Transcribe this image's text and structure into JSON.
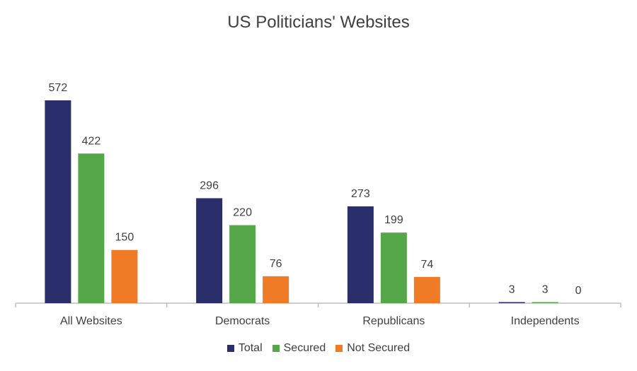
{
  "chart_data": {
    "type": "bar",
    "title": "US Politicians' Websites",
    "categories": [
      "All Websites",
      "Democrats",
      "Republicans",
      "Independents"
    ],
    "series": [
      {
        "name": "Total",
        "color": "#2a2f6b",
        "values": [
          572,
          296,
          273,
          3
        ]
      },
      {
        "name": "Secured",
        "color": "#56a74a",
        "values": [
          422,
          220,
          199,
          3
        ]
      },
      {
        "name": "Not Secured",
        "color": "#f07b26",
        "values": [
          150,
          76,
          74,
          0
        ]
      }
    ],
    "xlabel": "",
    "ylabel": "",
    "ylim": [
      0,
      572
    ],
    "grid": false,
    "legend_position": "bottom",
    "data_labels": true
  }
}
